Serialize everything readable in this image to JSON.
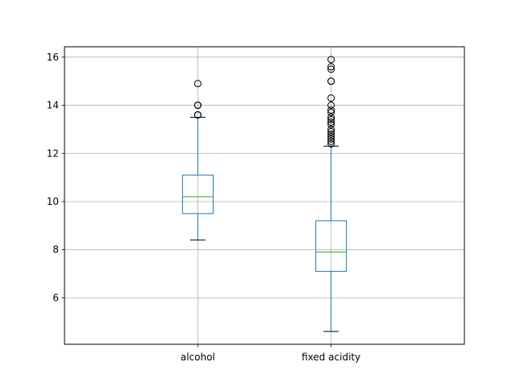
{
  "chart_data": {
    "type": "box",
    "title": "",
    "xlabel": "",
    "ylabel": "",
    "ylim": [
      4.07,
      16.43
    ],
    "yticks": [
      6,
      8,
      10,
      12,
      14,
      16
    ],
    "ytick_labels": [
      "6",
      "8",
      "10",
      "12",
      "14",
      "16"
    ],
    "grid": true,
    "categories": [
      "alcohol",
      "fixed acidity"
    ],
    "series": [
      {
        "category": "alcohol",
        "whisker_low": 8.4,
        "q1": 9.5,
        "median": 10.2,
        "q3": 11.1,
        "whisker_high": 13.5,
        "outliers": [
          13.6,
          13.6,
          13.6,
          14.0,
          14.0,
          14.0,
          14.9
        ]
      },
      {
        "category": "fixed acidity",
        "whisker_low": 4.6,
        "q1": 7.1,
        "median": 7.9,
        "q3": 9.2,
        "whisker_high": 12.3,
        "outliers": [
          12.4,
          12.5,
          12.6,
          12.7,
          12.8,
          12.9,
          13.0,
          13.2,
          13.3,
          13.4,
          13.5,
          13.7,
          13.8,
          14.0,
          14.3,
          15.0,
          15.0,
          15.5,
          15.6,
          15.9
        ]
      }
    ],
    "colors": {
      "box": "#1f77b4",
      "median": "#2ca02c",
      "whisker_cap": "#000000",
      "outlier": "#000000",
      "grid": "#b0b0b0"
    }
  }
}
